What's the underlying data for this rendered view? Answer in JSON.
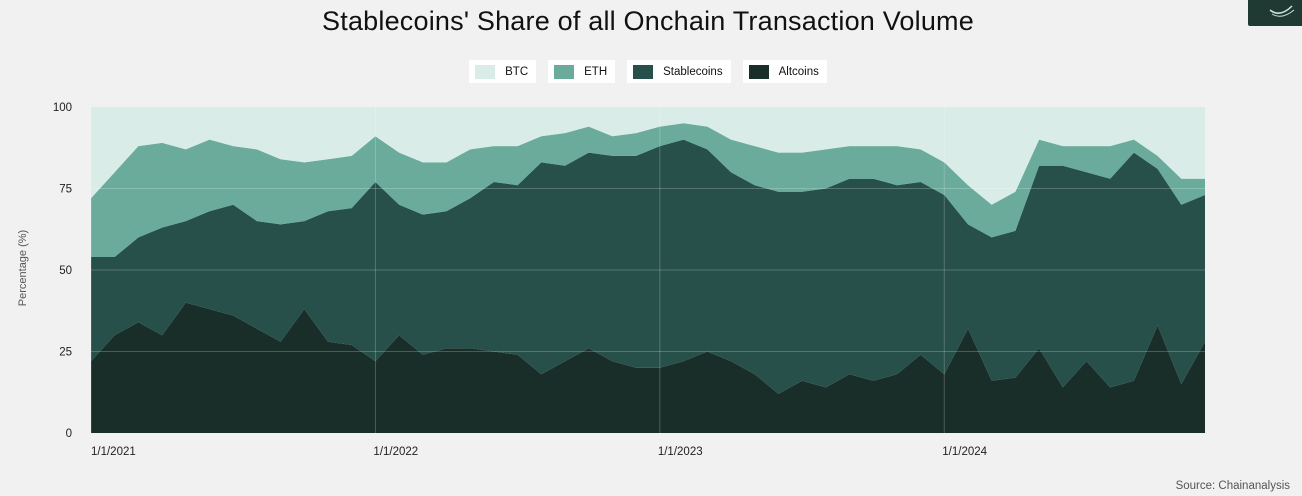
{
  "chart_data": {
    "type": "area",
    "stacked": true,
    "title": "Stablecoins' Share of all Onchain Transaction Volume",
    "ylabel": "Percentage (%)",
    "xlabel": "",
    "ylim": [
      0,
      100
    ],
    "yticks": [
      0,
      25,
      50,
      75,
      100
    ],
    "xticks": [
      "1/1/2021",
      "1/1/2022",
      "1/1/2023",
      "1/1/2024"
    ],
    "grid": true,
    "legend_position": "top-center",
    "source": "Source: Chainanalysis",
    "x": [
      "2021-01",
      "2021-02",
      "2021-03",
      "2021-04",
      "2021-05",
      "2021-06",
      "2021-07",
      "2021-08",
      "2021-09",
      "2021-10",
      "2021-11",
      "2021-12",
      "2022-01",
      "2022-02",
      "2022-03",
      "2022-04",
      "2022-05",
      "2022-06",
      "2022-07",
      "2022-08",
      "2022-09",
      "2022-10",
      "2022-11",
      "2022-12",
      "2023-01",
      "2023-02",
      "2023-03",
      "2023-04",
      "2023-05",
      "2023-06",
      "2023-07",
      "2023-08",
      "2023-09",
      "2023-10",
      "2023-11",
      "2023-12",
      "2024-01",
      "2024-02",
      "2024-03",
      "2024-04",
      "2024-05",
      "2024-06",
      "2024-07",
      "2024-08",
      "2024-09",
      "2024-10",
      "2024-11",
      "2024-12"
    ],
    "series": [
      {
        "name": "Altcoins",
        "color": "#1a2e29",
        "values": [
          22,
          30,
          34,
          30,
          40,
          38,
          36,
          32,
          28,
          38,
          28,
          27,
          22,
          30,
          24,
          26,
          26,
          25,
          24,
          18,
          22,
          26,
          22,
          20,
          20,
          22,
          25,
          22,
          18,
          12,
          16,
          14,
          18,
          16,
          18,
          24,
          18,
          32,
          16,
          17,
          26,
          14,
          22,
          14,
          16,
          33,
          15,
          28
        ]
      },
      {
        "name": "Stablecoins",
        "color": "#27504a",
        "values": [
          32,
          24,
          26,
          33,
          25,
          30,
          34,
          33,
          36,
          27,
          40,
          42,
          55,
          40,
          43,
          42,
          46,
          52,
          52,
          65,
          60,
          60,
          63,
          65,
          68,
          68,
          62,
          58,
          58,
          62,
          58,
          61,
          60,
          62,
          58,
          53,
          55,
          32,
          44,
          45,
          56,
          68,
          58,
          64,
          70,
          48,
          55,
          45
        ]
      },
      {
        "name": "ETH",
        "color": "#6aab9b",
        "values": [
          18,
          26,
          28,
          26,
          22,
          22,
          18,
          22,
          20,
          18,
          16,
          16,
          14,
          16,
          16,
          15,
          15,
          11,
          12,
          8,
          10,
          8,
          6,
          7,
          6,
          5,
          7,
          10,
          12,
          12,
          12,
          12,
          10,
          10,
          12,
          10,
          10,
          12,
          10,
          12,
          8,
          6,
          8,
          10,
          4,
          4,
          8,
          5
        ]
      },
      {
        "name": "BTC",
        "color": "#d9ece7",
        "values": [
          28,
          20,
          12,
          11,
          13,
          10,
          12,
          13,
          16,
          17,
          16,
          15,
          9,
          14,
          17,
          17,
          13,
          12,
          12,
          9,
          8,
          6,
          9,
          8,
          6,
          5,
          6,
          10,
          12,
          14,
          14,
          13,
          12,
          12,
          12,
          13,
          17,
          24,
          30,
          26,
          10,
          12,
          12,
          12,
          10,
          15,
          22,
          22
        ]
      }
    ]
  },
  "legend": [
    {
      "label": "BTC",
      "color": "#d9ece7"
    },
    {
      "label": "ETH",
      "color": "#6aab9b"
    },
    {
      "label": "Stablecoins",
      "color": "#27504a"
    },
    {
      "label": "Altcoins",
      "color": "#1a2e29"
    }
  ]
}
